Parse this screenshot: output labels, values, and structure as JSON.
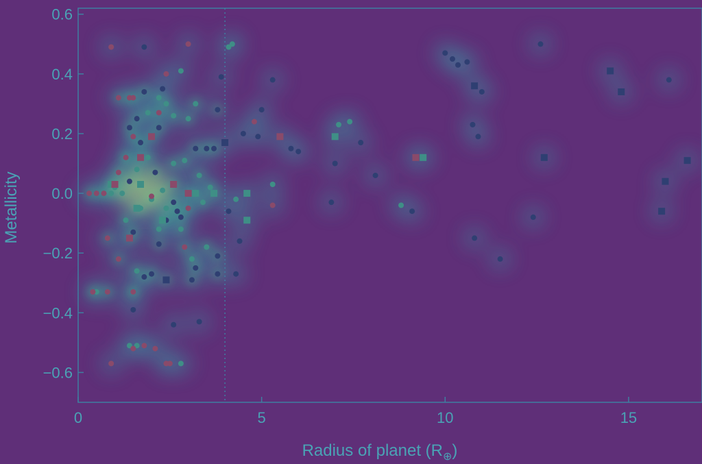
{
  "chart_data": {
    "type": "scatter",
    "title": "",
    "xlabel": "Radius of planet (R",
    "xlabel_sub": "⊕",
    "xlabel_close": ")",
    "ylabel": "Metallicity",
    "xlim": [
      0,
      17
    ],
    "ylim": [
      -0.7,
      0.62
    ],
    "x_ticks": [
      {
        "value": 0,
        "label": "0"
      },
      {
        "value": 5,
        "label": "5"
      },
      {
        "value": 10,
        "label": "10"
      },
      {
        "value": 15,
        "label": "15"
      }
    ],
    "y_ticks": [
      {
        "value": 0.6,
        "label": "0.6"
      },
      {
        "value": 0.4,
        "label": "0.4"
      },
      {
        "value": 0.2,
        "label": "0.2"
      },
      {
        "value": 0.0,
        "label": "0.0"
      },
      {
        "value": -0.2,
        "label": "−0.2"
      },
      {
        "value": -0.4,
        "label": "−0.4"
      },
      {
        "value": -0.6,
        "label": "−0.6"
      }
    ],
    "reference_line_x": 4.0,
    "grid": false,
    "overlay": "density heatmap",
    "colors": {
      "background": "#5f2f78",
      "frame": "#3e7fa0",
      "text": "#4aa3b5",
      "marker_dark": "#2f3f72",
      "marker_teal": "#3f8f86",
      "marker_red": "#8a4a6a",
      "heat_low": "#3d8fa0",
      "heat_mid": "#3fbf8a",
      "heat_high": "#bfe07a"
    },
    "series": [
      {
        "marker": "circle",
        "color": "#2f3f72",
        "points": [
          [
            1.8,
            0.49
          ],
          [
            3.9,
            0.39
          ],
          [
            5.3,
            0.38
          ],
          [
            3.8,
            0.28
          ],
          [
            5.0,
            0.28
          ],
          [
            4.9,
            0.19
          ],
          [
            4.5,
            0.2
          ],
          [
            5.8,
            0.15
          ],
          [
            6.0,
            0.14
          ],
          [
            7.7,
            0.17
          ],
          [
            7.0,
            0.1
          ],
          [
            8.1,
            0.06
          ],
          [
            6.9,
            -0.03
          ],
          [
            9.1,
            -0.06
          ],
          [
            10.0,
            0.47
          ],
          [
            10.2,
            0.45
          ],
          [
            10.35,
            0.43
          ],
          [
            10.6,
            0.44
          ],
          [
            10.75,
            0.23
          ],
          [
            10.9,
            0.19
          ],
          [
            11.0,
            0.34
          ],
          [
            10.8,
            -0.15
          ],
          [
            11.5,
            -0.22
          ],
          [
            12.4,
            -0.08
          ],
          [
            12.6,
            0.5
          ],
          [
            16.1,
            0.38
          ],
          [
            4.1,
            -0.06
          ],
          [
            4.4,
            -0.16
          ],
          [
            4.3,
            -0.27
          ],
          [
            3.8,
            -0.21
          ],
          [
            3.8,
            -0.27
          ],
          [
            3.2,
            -0.25
          ],
          [
            3.1,
            -0.29
          ],
          [
            2.6,
            -0.44
          ],
          [
            3.3,
            -0.43
          ],
          [
            1.5,
            -0.39
          ],
          [
            2.0,
            -0.27
          ],
          [
            1.8,
            -0.28
          ],
          [
            2.8,
            -0.08
          ],
          [
            3.5,
            0.15
          ],
          [
            3.7,
            0.15
          ],
          [
            2.3,
            0.35
          ],
          [
            1.8,
            0.34
          ],
          [
            2.2,
            0.22
          ],
          [
            1.4,
            0.22
          ],
          [
            1.6,
            0.25
          ],
          [
            1.7,
            0.17
          ],
          [
            2.1,
            0.07
          ],
          [
            1.4,
            0.04
          ],
          [
            3.2,
            0.15
          ],
          [
            2.6,
            -0.03
          ],
          [
            2.4,
            -0.09
          ],
          [
            1.5,
            -0.13
          ],
          [
            2.2,
            -0.17
          ],
          [
            2.7,
            -0.06
          ]
        ]
      },
      {
        "marker": "circle",
        "color": "#3f8f86",
        "points": [
          [
            4.1,
            0.49
          ],
          [
            4.2,
            0.5
          ],
          [
            7.1,
            0.23
          ],
          [
            7.4,
            0.24
          ],
          [
            8.8,
            -0.04
          ],
          [
            5.3,
            0.03
          ],
          [
            4.3,
            -0.02
          ],
          [
            2.8,
            0.41
          ],
          [
            2.2,
            0.32
          ],
          [
            2.4,
            0.3
          ],
          [
            2.6,
            0.26
          ],
          [
            3.0,
            0.25
          ],
          [
            3.2,
            0.3
          ],
          [
            1.9,
            0.27
          ],
          [
            1.3,
            0.12
          ],
          [
            1.6,
            0.08
          ],
          [
            2.9,
            0.11
          ],
          [
            3.3,
            0.06
          ],
          [
            3.6,
            0.02
          ],
          [
            1.2,
            0.0
          ],
          [
            1.0,
            0.02
          ],
          [
            0.9,
            0.0
          ],
          [
            1.7,
            -0.05
          ],
          [
            2.0,
            -0.02
          ],
          [
            2.4,
            -0.05
          ],
          [
            2.2,
            -0.12
          ],
          [
            2.8,
            -0.12
          ],
          [
            3.1,
            -0.22
          ],
          [
            3.5,
            -0.18
          ],
          [
            1.3,
            -0.09
          ],
          [
            1.6,
            -0.26
          ],
          [
            1.5,
            -0.33
          ],
          [
            1.4,
            -0.51
          ],
          [
            1.6,
            -0.51
          ],
          [
            2.8,
            -0.57
          ],
          [
            0.5,
            -0.33
          ],
          [
            2.3,
            0.01
          ],
          [
            2.6,
            0.1
          ],
          [
            1.9,
            0.12
          ],
          [
            3.4,
            -0.03
          ]
        ]
      },
      {
        "marker": "circle",
        "color": "#8a4a6a",
        "points": [
          [
            0.9,
            0.49
          ],
          [
            3.0,
            0.5
          ],
          [
            2.4,
            0.4
          ],
          [
            1.1,
            0.32
          ],
          [
            1.4,
            0.32
          ],
          [
            1.5,
            0.32
          ],
          [
            4.8,
            0.24
          ],
          [
            1.5,
            0.19
          ],
          [
            5.3,
            -0.04
          ],
          [
            0.8,
            -0.15
          ],
          [
            1.1,
            -0.22
          ],
          [
            2.9,
            -0.18
          ],
          [
            0.4,
            -0.33
          ],
          [
            0.8,
            -0.33
          ],
          [
            1.5,
            -0.33
          ],
          [
            0.9,
            -0.57
          ],
          [
            2.4,
            -0.57
          ],
          [
            2.5,
            -0.57
          ],
          [
            1.5,
            -0.52
          ],
          [
            2.1,
            -0.52
          ],
          [
            1.8,
            -0.51
          ],
          [
            0.3,
            0.0
          ],
          [
            0.5,
            0.0
          ],
          [
            0.7,
            0.0
          ],
          [
            1.1,
            0.07
          ],
          [
            1.3,
            0.12
          ],
          [
            2.0,
            -0.01
          ],
          [
            3.0,
            -0.05
          ],
          [
            2.2,
            0.27
          ]
        ]
      },
      {
        "marker": "square",
        "color": "#2f3f72",
        "points": [
          [
            4.0,
            0.17
          ],
          [
            10.8,
            0.36
          ],
          [
            12.7,
            0.12
          ],
          [
            14.5,
            0.41
          ],
          [
            14.8,
            0.34
          ],
          [
            16.0,
            0.04
          ],
          [
            16.6,
            0.11
          ],
          [
            15.9,
            -0.06
          ],
          [
            2.4,
            -0.29
          ]
        ]
      },
      {
        "marker": "square",
        "color": "#3f8f86",
        "points": [
          [
            7.0,
            0.19
          ],
          [
            9.4,
            0.12
          ],
          [
            4.6,
            0.0
          ],
          [
            4.6,
            -0.09
          ],
          [
            3.7,
            0.0
          ],
          [
            3.2,
            0.0
          ],
          [
            1.6,
            -0.05
          ],
          [
            2.3,
            -0.09
          ],
          [
            0.9,
            0.03
          ],
          [
            1.7,
            0.03
          ]
        ]
      },
      {
        "marker": "square",
        "color": "#8a4a6a",
        "points": [
          [
            5.5,
            0.19
          ],
          [
            9.2,
            0.12
          ],
          [
            2.0,
            0.19
          ],
          [
            1.7,
            0.12
          ],
          [
            2.6,
            0.03
          ],
          [
            3.0,
            0.0
          ],
          [
            1.4,
            -0.15
          ],
          [
            1.0,
            0.03
          ]
        ]
      }
    ]
  }
}
